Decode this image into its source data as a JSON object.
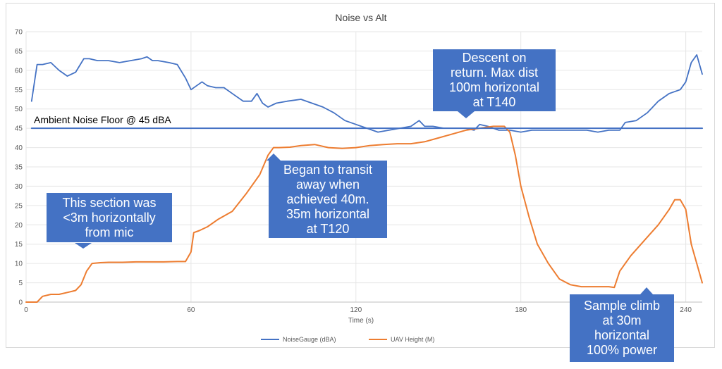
{
  "chart_data": {
    "type": "line",
    "title": "Noise vs Alt",
    "xlabel": "Time (s)",
    "ylabel": "",
    "xlim": [
      0,
      246
    ],
    "ylim": [
      0,
      70
    ],
    "xticks": [
      0,
      60,
      120,
      180,
      240
    ],
    "yticks": [
      0,
      5,
      10,
      15,
      20,
      25,
      30,
      35,
      40,
      45,
      50,
      55,
      60,
      65,
      70
    ],
    "grid": true,
    "legend_position": "bottom",
    "series": [
      {
        "name": "NoiseGauge (dBA)",
        "color": "#4472C4",
        "x": [
          2,
          4,
          6,
          9,
          12,
          15,
          18,
          21,
          23,
          26,
          30,
          34,
          38,
          42,
          44,
          46,
          48,
          52,
          55,
          58,
          60,
          62,
          64,
          66,
          69,
          72,
          75,
          79,
          82,
          84,
          86,
          88,
          91,
          95,
          100,
          104,
          108,
          112,
          116,
          120,
          124,
          128,
          132,
          136,
          140,
          143,
          145,
          148,
          152,
          156,
          160,
          163,
          165,
          168,
          172,
          176,
          180,
          184,
          188,
          192,
          196,
          200,
          204,
          208,
          212,
          216,
          218,
          222,
          226,
          230,
          234,
          238,
          240,
          242,
          244,
          246
        ],
        "y": [
          52,
          61.5,
          61.5,
          62,
          60,
          58.5,
          59.5,
          63,
          63,
          62.5,
          62.5,
          62,
          62.5,
          63,
          63.5,
          62.5,
          62.5,
          62,
          61.5,
          58,
          55,
          56,
          57,
          56,
          55.5,
          55.5,
          54,
          52,
          52,
          54,
          51.5,
          50.5,
          51.5,
          52,
          52.5,
          51.5,
          50.5,
          49,
          47,
          46,
          45,
          44,
          44.5,
          45,
          45.5,
          47,
          45.5,
          45.5,
          45,
          45,
          45,
          44.5,
          46,
          45.5,
          44.5,
          44.5,
          44,
          44.5,
          44.5,
          44.5,
          44.5,
          44.5,
          44.5,
          44,
          44.5,
          44.5,
          46.5,
          47,
          49,
          52,
          54,
          55,
          57,
          62,
          64,
          59
        ]
      },
      {
        "name": "UAV Height (M)",
        "color": "#ED7D31",
        "x": [
          0,
          4,
          6,
          9,
          12,
          15,
          18,
          20,
          22,
          24,
          27,
          30,
          35,
          40,
          45,
          50,
          55,
          58,
          60,
          61,
          63,
          66,
          70,
          75,
          80,
          85,
          88,
          90,
          92,
          96,
          100,
          105,
          110,
          115,
          120,
          125,
          130,
          135,
          140,
          145,
          150,
          155,
          160,
          165,
          170,
          174,
          176,
          178,
          180,
          183,
          186,
          190,
          194,
          198,
          202,
          206,
          210,
          212,
          214,
          216,
          220,
          225,
          230,
          234,
          236,
          238,
          240,
          242,
          244,
          246
        ],
        "y": [
          0,
          0,
          1.5,
          2,
          2,
          2.5,
          3,
          4.5,
          8,
          10,
          10.2,
          10.3,
          10.3,
          10.4,
          10.4,
          10.4,
          10.5,
          10.5,
          13,
          18,
          18.5,
          19.5,
          21.5,
          23.5,
          28,
          33,
          38,
          40,
          40,
          40.1,
          40.5,
          40.8,
          40,
          39.8,
          40,
          40.5,
          40.8,
          41,
          41,
          41.5,
          42.5,
          43.5,
          44.5,
          45,
          45.5,
          45.5,
          44,
          38,
          30,
          22,
          15,
          10,
          6,
          4.5,
          4,
          4,
          4,
          4,
          3.8,
          8,
          12,
          16,
          20,
          24,
          26.5,
          26.5,
          24,
          15,
          10,
          5
        ]
      },
      {
        "name": "",
        "color": "#4472C4",
        "x": [
          2,
          246
        ],
        "y": [
          45,
          45
        ]
      }
    ],
    "annotations": [
      {
        "name": "noise-floor",
        "text": "Ambient Noise Floor @ 45 dBA"
      },
      {
        "name": "section",
        "text": "This section was\n<3m horizontally\nfrom mic"
      },
      {
        "name": "transit",
        "text": "Began to transit\naway when\nachieved 40m.\n35m horizontal\nat T120"
      },
      {
        "name": "descent",
        "text": "Descent on\nreturn. Max dist\n100m horizontal\nat T140"
      },
      {
        "name": "climb",
        "text": "Sample climb\nat 30m\nhorizontal\n100% power"
      }
    ]
  }
}
